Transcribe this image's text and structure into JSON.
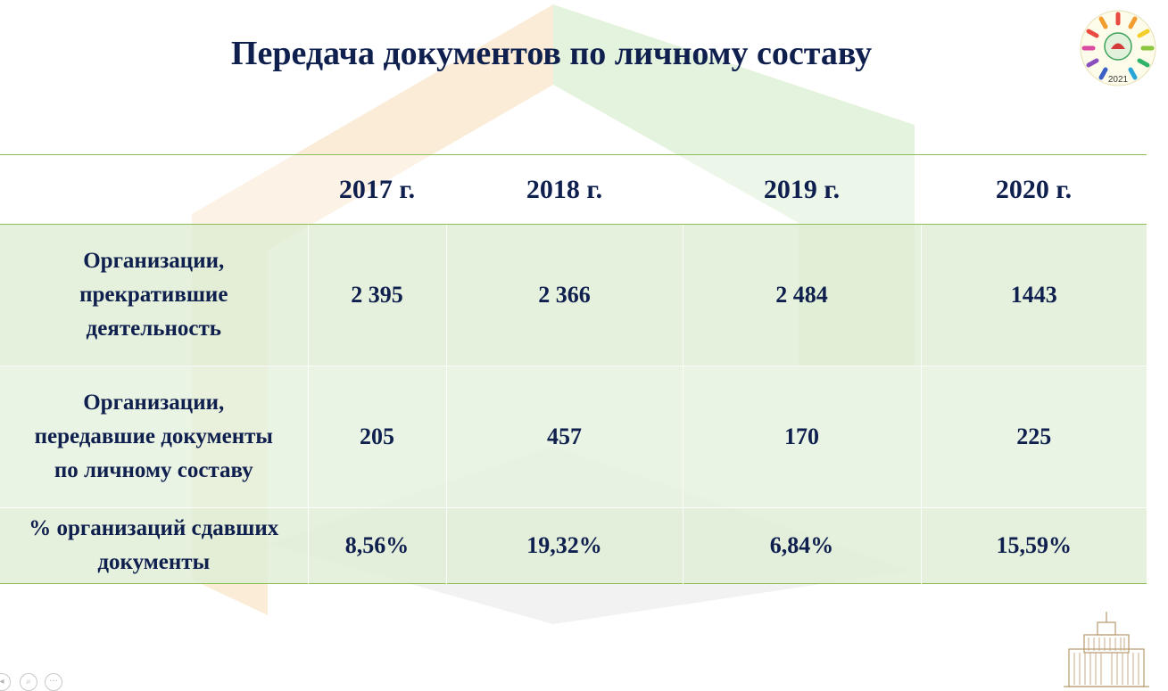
{
  "slide": {
    "title": "Передача документов по личному составу",
    "logo_icon": "festival-wreath-logo-icon",
    "logo_year": "2021",
    "building_icon": "government-building-icon"
  },
  "table": {
    "headers": [
      "",
      "2017 г.",
      "2018 г.",
      "2019 г.",
      "2020 г."
    ],
    "rows": [
      {
        "label": [
          "Организации,",
          "прекратившие",
          "деятельность"
        ],
        "values": [
          "2 395",
          "2 366",
          "2 484",
          "1443"
        ]
      },
      {
        "label": [
          "Организации,",
          "передавшие документы",
          "по личному составу"
        ],
        "values": [
          "205",
          "457",
          "170",
          "225"
        ]
      },
      {
        "label": [
          "% организаций сдавших",
          "документы"
        ],
        "values": [
          "8,56%",
          "19,32%",
          "6,84%",
          "15,59%"
        ]
      }
    ]
  },
  "colors": {
    "title": "#0f1f4e",
    "row_fill": "#deedd4",
    "accent_line": "#8fbf5a",
    "bg_orange": "#f7dcb7",
    "bg_green": "#cde9c1",
    "bg_gray": "#ededed"
  },
  "controls": {
    "prev_icon": "slide-prev-icon",
    "zoom_icon": "zoom-icon",
    "more_icon": "more-options-icon",
    "more_glyph": "···"
  }
}
